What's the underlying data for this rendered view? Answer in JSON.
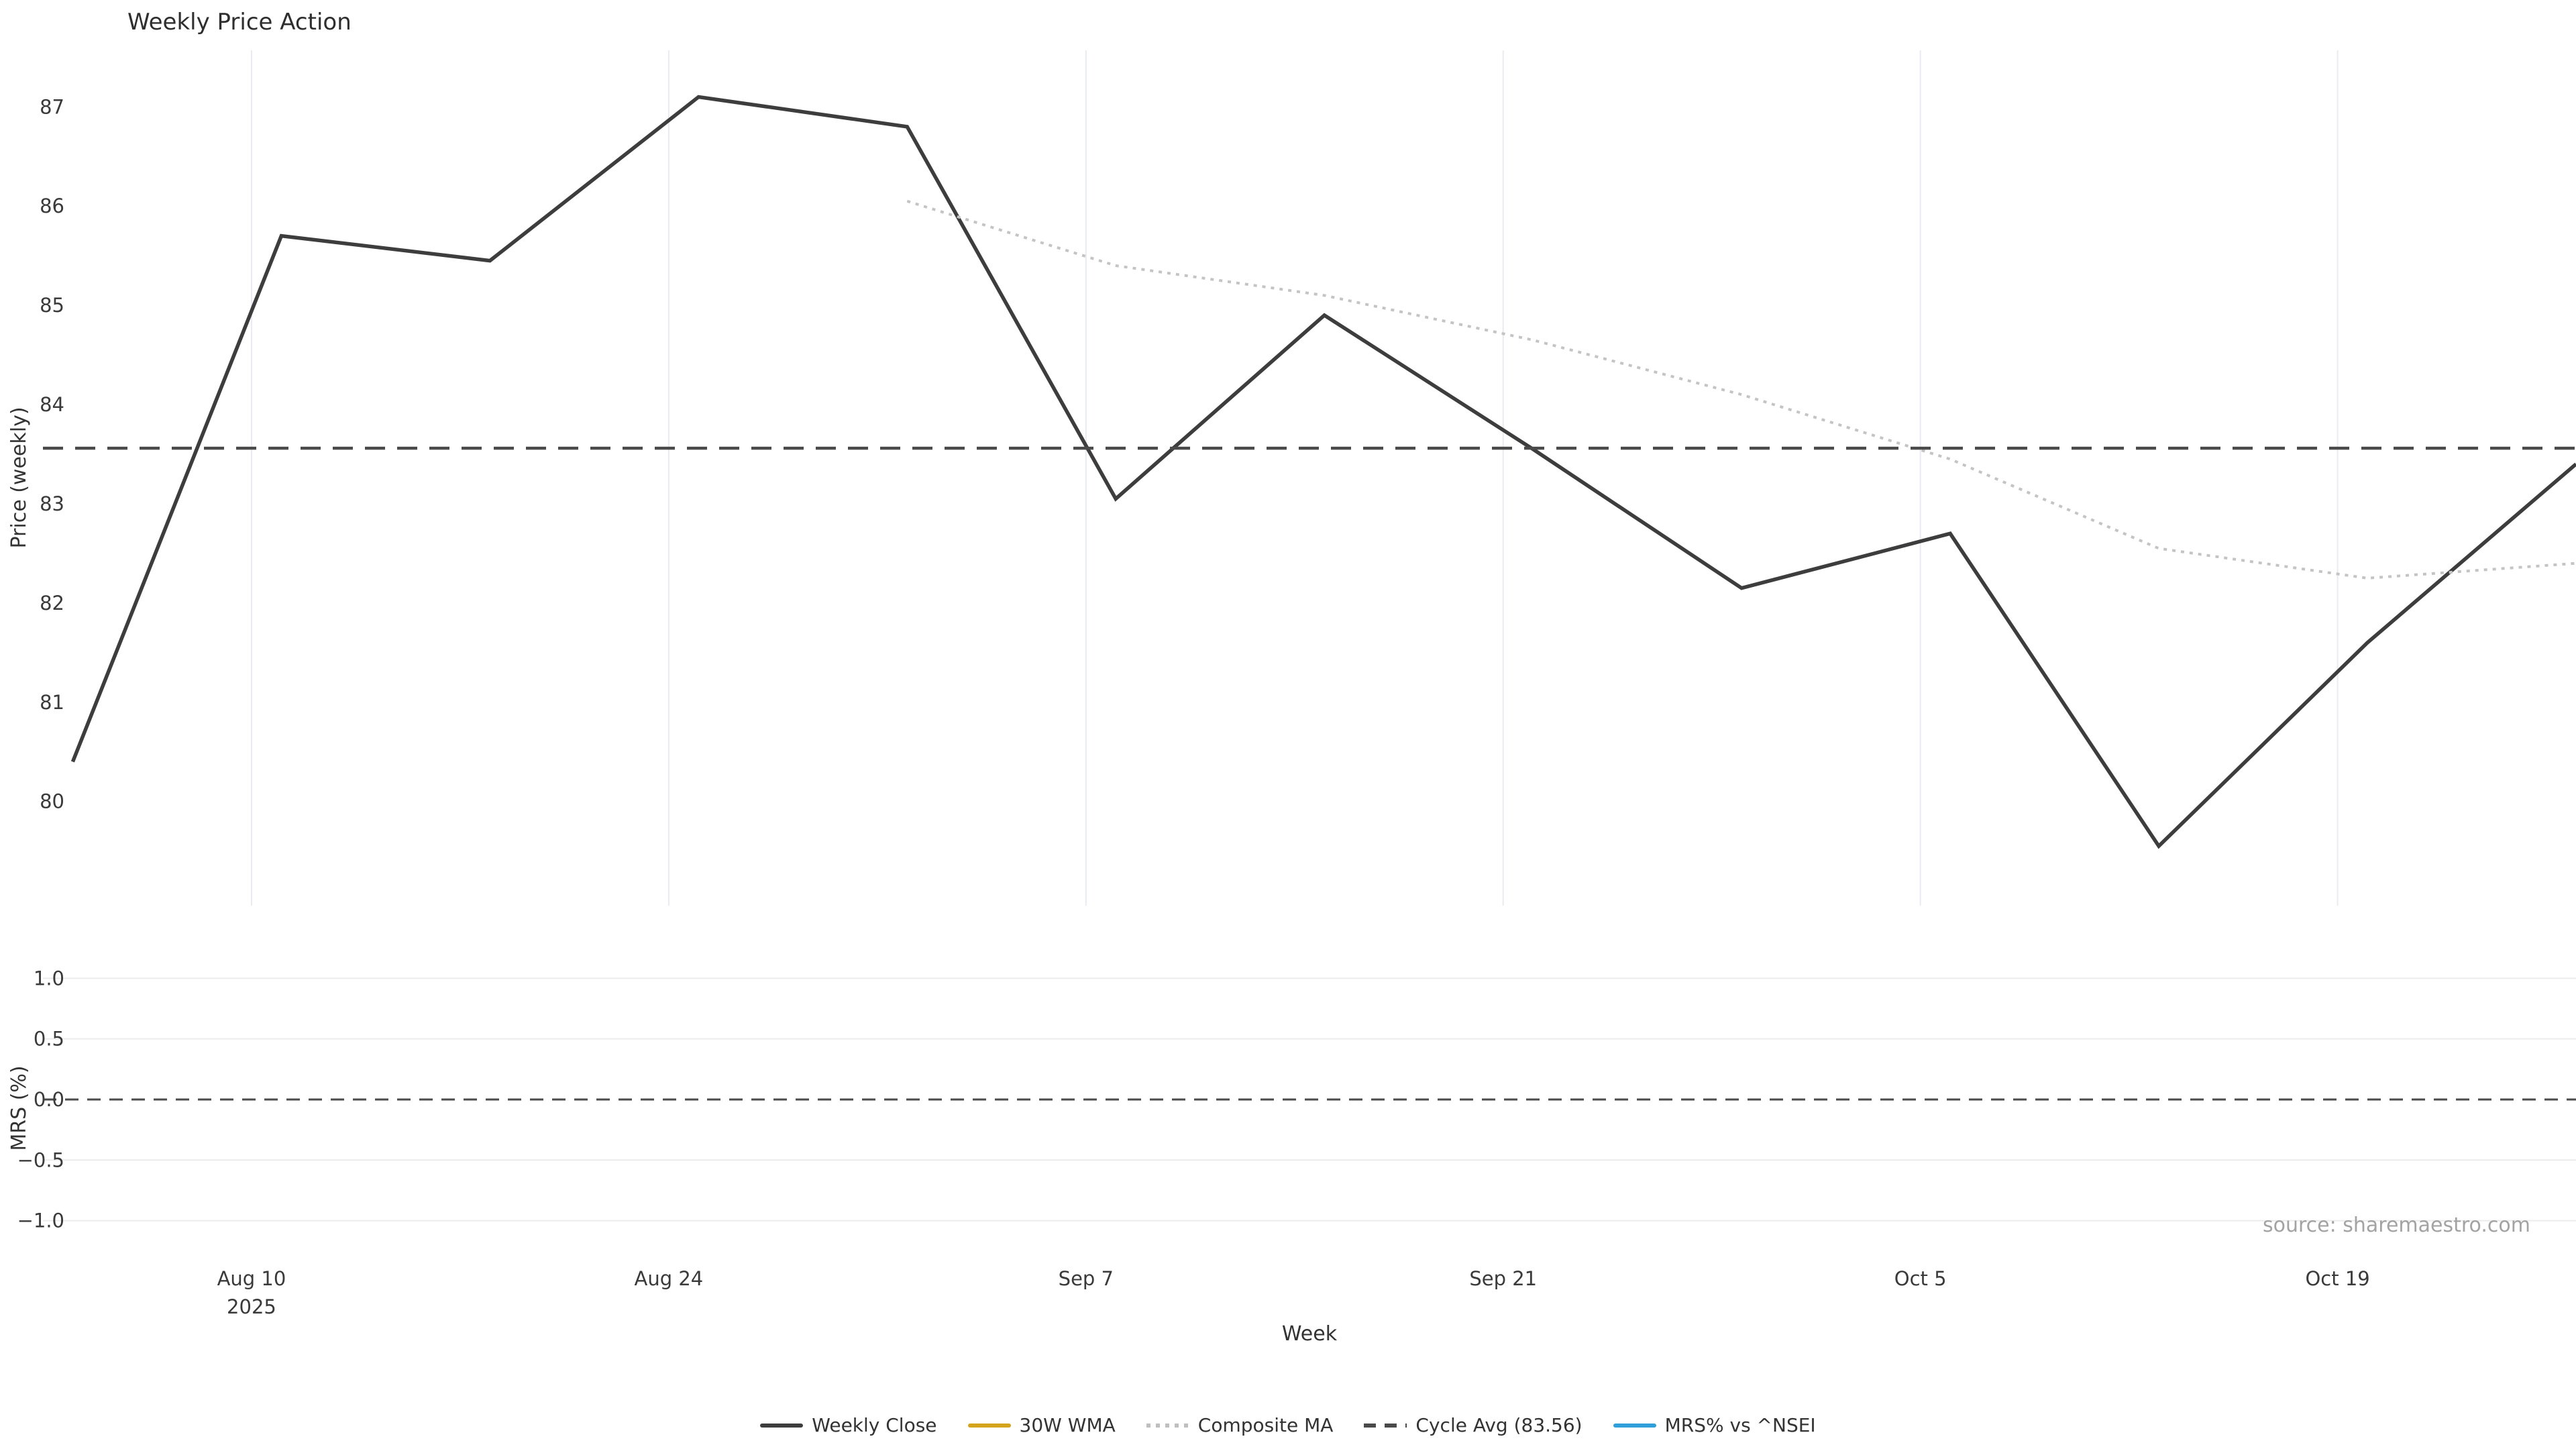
{
  "source_note": "source: sharemaestro.com",
  "chart_data": {
    "type": "line",
    "title": "Weekly Price Action",
    "xlabel": "Week",
    "x_unit": "days_from_first_point",
    "xlim": [
      -1,
      84
    ],
    "xticks": [
      {
        "day": 6,
        "lines": [
          "Aug 10",
          "2025"
        ]
      },
      {
        "day": 20,
        "lines": [
          "Aug 24"
        ]
      },
      {
        "day": 34,
        "lines": [
          "Sep 7"
        ]
      },
      {
        "day": 48,
        "lines": [
          "Sep 21"
        ]
      },
      {
        "day": 62,
        "lines": [
          "Oct 5"
        ]
      },
      {
        "day": 76,
        "lines": [
          "Oct 19"
        ]
      }
    ],
    "grid_color": "#e9ebf1",
    "panels": [
      {
        "name": "price",
        "ylabel": "Price (weekly)",
        "ylim": [
          78.95,
          87.57
        ],
        "yticks": [
          {
            "v": 87,
            "label": "87"
          },
          {
            "v": 86,
            "label": "86"
          },
          {
            "v": 85,
            "label": "85"
          },
          {
            "v": 84,
            "label": "84"
          },
          {
            "v": 83,
            "label": "83"
          },
          {
            "v": 82,
            "label": "82"
          },
          {
            "v": 81,
            "label": "81"
          },
          {
            "v": 80,
            "label": "80"
          }
        ],
        "vertical_gridlines": true,
        "series": [
          {
            "name": "Weekly Close",
            "style": "solid",
            "color": "#3d3d3d",
            "width": 5.5,
            "x_days": [
              0,
              7,
              14,
              21,
              28,
              35,
              42,
              49,
              56,
              63,
              70,
              77,
              84
            ],
            "values": [
              80.4,
              85.7,
              85.45,
              87.1,
              86.8,
              83.05,
              84.9,
              83.55,
              82.15,
              82.7,
              79.55,
              81.6,
              83.4
            ]
          },
          {
            "name": "Composite MA",
            "style": "dotted",
            "color": "#c4c4c4",
            "width": 4,
            "x_days": [
              28,
              35,
              42,
              49,
              56,
              63,
              70,
              77,
              84
            ],
            "values": [
              86.05,
              85.4,
              85.1,
              84.65,
              84.1,
              83.45,
              82.55,
              82.25,
              82.4
            ]
          },
          {
            "name": "Cycle Avg",
            "style": "dashed",
            "color": "#4a4a4a",
            "width": 4.5,
            "const_value": 83.56
          }
        ]
      },
      {
        "name": "mrs",
        "ylabel": "MRS (%)",
        "ylim": [
          -1.39,
          1.24
        ],
        "yticks": [
          {
            "v": 1.0,
            "label": "1.0"
          },
          {
            "v": 0.5,
            "label": "0.5"
          },
          {
            "v": 0.0,
            "label": "0.0"
          },
          {
            "v": -0.5,
            "label": "−0.5"
          },
          {
            "v": -1.0,
            "label": "−1.0"
          }
        ],
        "gridline_color": "#ececec",
        "zero_line": {
          "style": "dashed",
          "color": "#4a4a4a",
          "width": 3
        },
        "series": []
      }
    ],
    "legend": [
      {
        "label": "Weekly Close",
        "style": "solid",
        "color": "#3d3d3d"
      },
      {
        "label": "30W WMA",
        "style": "solid",
        "color": "#d4a41c"
      },
      {
        "label": "Composite MA",
        "style": "dotted",
        "color": "#bfbfbf"
      },
      {
        "label": "Cycle Avg (83.56)",
        "style": "dashed",
        "color": "#4a4a4a"
      },
      {
        "label": "MRS% vs ^NSEI",
        "style": "solid",
        "color": "#2e9fd9"
      }
    ]
  }
}
